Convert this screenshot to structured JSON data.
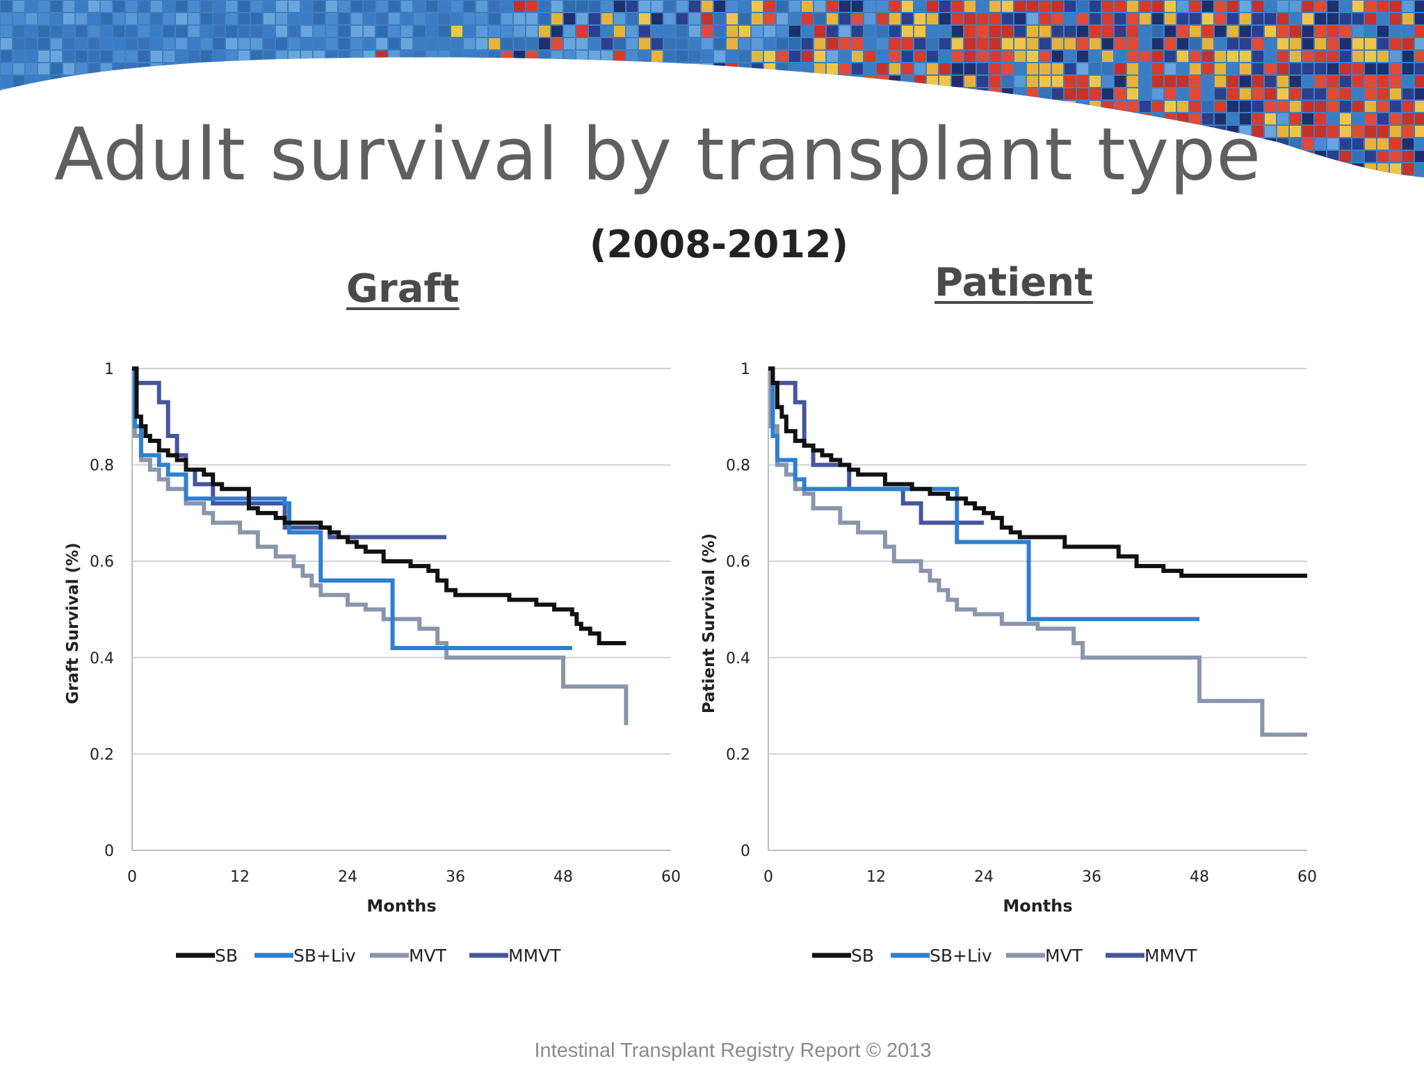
{
  "slide": {
    "title": "Adult survival by transplant type",
    "subtitle": "(2008-2012)",
    "footer": "Intestinal Transplant Registry Report © 2013"
  },
  "colors": {
    "SB": "#111111",
    "SB+Liv": "#2f7fd0",
    "MVT": "#8995ab",
    "MMVT": "#46569d",
    "grid": "#d0d0d0",
    "title": "#5f5f61"
  },
  "chart_data": [
    {
      "type": "line",
      "step": true,
      "title": "Graft",
      "xlabel": "Months",
      "ylabel": "Graft Survival (%)",
      "xlim": [
        0,
        60
      ],
      "ylim": [
        0,
        1
      ],
      "xticks": [
        "0",
        "12",
        "24",
        "36",
        "48",
        "60"
      ],
      "yticks": [
        "0",
        "0.2",
        "0.4",
        "0.6",
        "0.8",
        "1"
      ],
      "grid": true,
      "legend": "bottom",
      "series": [
        {
          "name": "SB",
          "x": [
            0,
            0.5,
            1,
            1.5,
            2,
            3,
            4,
            5,
            6,
            7,
            8,
            9,
            10,
            13,
            14,
            15,
            16,
            17,
            18,
            21,
            22,
            23,
            24,
            25,
            26,
            28,
            31,
            33,
            34,
            35,
            36,
            40,
            42,
            45,
            47,
            49,
            49.5,
            50,
            51,
            52,
            53,
            55
          ],
          "y": [
            1,
            0.9,
            0.88,
            0.86,
            0.85,
            0.83,
            0.82,
            0.81,
            0.79,
            0.79,
            0.78,
            0.76,
            0.75,
            0.71,
            0.7,
            0.7,
            0.69,
            0.68,
            0.68,
            0.67,
            0.66,
            0.65,
            0.64,
            0.63,
            0.62,
            0.6,
            0.59,
            0.58,
            0.56,
            0.54,
            0.53,
            0.53,
            0.52,
            0.51,
            0.5,
            0.49,
            0.47,
            0.46,
            0.45,
            0.43,
            0.43,
            0.43
          ]
        },
        {
          "name": "SB+Liv",
          "x": [
            0,
            0.3,
            1,
            3,
            4,
            6,
            17,
            17.5,
            21,
            29,
            30,
            35,
            49
          ],
          "y": [
            1,
            0.88,
            0.82,
            0.8,
            0.78,
            0.73,
            0.72,
            0.66,
            0.56,
            0.42,
            0.42,
            0.42,
            0.42
          ]
        },
        {
          "name": "MVT",
          "x": [
            0,
            0.3,
            1,
            2,
            3,
            4,
            6,
            8,
            9,
            12,
            14,
            16,
            18,
            19,
            20,
            21,
            24,
            26,
            28,
            32,
            34,
            35,
            46,
            48,
            50,
            55,
            55
          ],
          "y": [
            1,
            0.86,
            0.81,
            0.79,
            0.77,
            0.75,
            0.72,
            0.7,
            0.68,
            0.66,
            0.63,
            0.61,
            0.59,
            0.57,
            0.55,
            0.53,
            0.51,
            0.5,
            0.48,
            0.46,
            0.43,
            0.4,
            0.4,
            0.34,
            0.34,
            0.34,
            0.26
          ]
        },
        {
          "name": "MMVT",
          "x": [
            0,
            0.5,
            2,
            3,
            4,
            5,
            6,
            7,
            9,
            17,
            22,
            26,
            35
          ],
          "y": [
            1,
            0.97,
            0.97,
            0.93,
            0.86,
            0.82,
            0.79,
            0.76,
            0.72,
            0.67,
            0.65,
            0.65,
            0.65
          ]
        }
      ]
    },
    {
      "type": "line",
      "step": true,
      "title": "Patient",
      "xlabel": "Months",
      "ylabel": "Patient Survival (%)",
      "xlim": [
        0,
        60
      ],
      "ylim": [
        0,
        1
      ],
      "xticks": [
        "0",
        "12",
        "24",
        "36",
        "48",
        "60"
      ],
      "yticks": [
        "0",
        "0.2",
        "0.4",
        "0.6",
        "0.8",
        "1"
      ],
      "grid": true,
      "legend": "bottom",
      "series": [
        {
          "name": "SB",
          "x": [
            0,
            0.5,
            1,
            1.5,
            2,
            3,
            4,
            5,
            6,
            7,
            8,
            9,
            10,
            13,
            16,
            18,
            20,
            22,
            23,
            24,
            25,
            26,
            27,
            28,
            29,
            33,
            39,
            41,
            44,
            46,
            60
          ],
          "y": [
            1,
            0.97,
            0.92,
            0.9,
            0.87,
            0.85,
            0.84,
            0.83,
            0.82,
            0.81,
            0.8,
            0.79,
            0.78,
            0.76,
            0.75,
            0.74,
            0.73,
            0.72,
            0.71,
            0.7,
            0.69,
            0.67,
            0.66,
            0.65,
            0.65,
            0.63,
            0.61,
            0.59,
            0.58,
            0.57,
            0.57
          ]
        },
        {
          "name": "SB+Liv",
          "x": [
            0,
            0.5,
            1,
            3,
            4,
            21,
            29,
            48
          ],
          "y": [
            1,
            0.86,
            0.81,
            0.77,
            0.75,
            0.64,
            0.48,
            0.48
          ]
        },
        {
          "name": "MVT",
          "x": [
            0,
            0.3,
            1,
            2,
            3,
            4,
            5,
            8,
            10,
            13,
            14,
            17,
            18,
            19,
            20,
            21,
            22,
            23,
            26,
            28,
            30,
            34,
            35,
            48,
            55,
            60
          ],
          "y": [
            1,
            0.88,
            0.8,
            0.78,
            0.75,
            0.74,
            0.71,
            0.68,
            0.66,
            0.63,
            0.6,
            0.58,
            0.56,
            0.54,
            0.52,
            0.5,
            0.5,
            0.49,
            0.47,
            0.47,
            0.46,
            0.43,
            0.4,
            0.31,
            0.24,
            0.24
          ]
        },
        {
          "name": "MMVT",
          "x": [
            0,
            0.5,
            3,
            4,
            5,
            9,
            15,
            17,
            21,
            24
          ],
          "y": [
            1,
            0.97,
            0.93,
            0.84,
            0.8,
            0.75,
            0.72,
            0.68,
            0.68,
            0.68
          ]
        }
      ]
    }
  ]
}
